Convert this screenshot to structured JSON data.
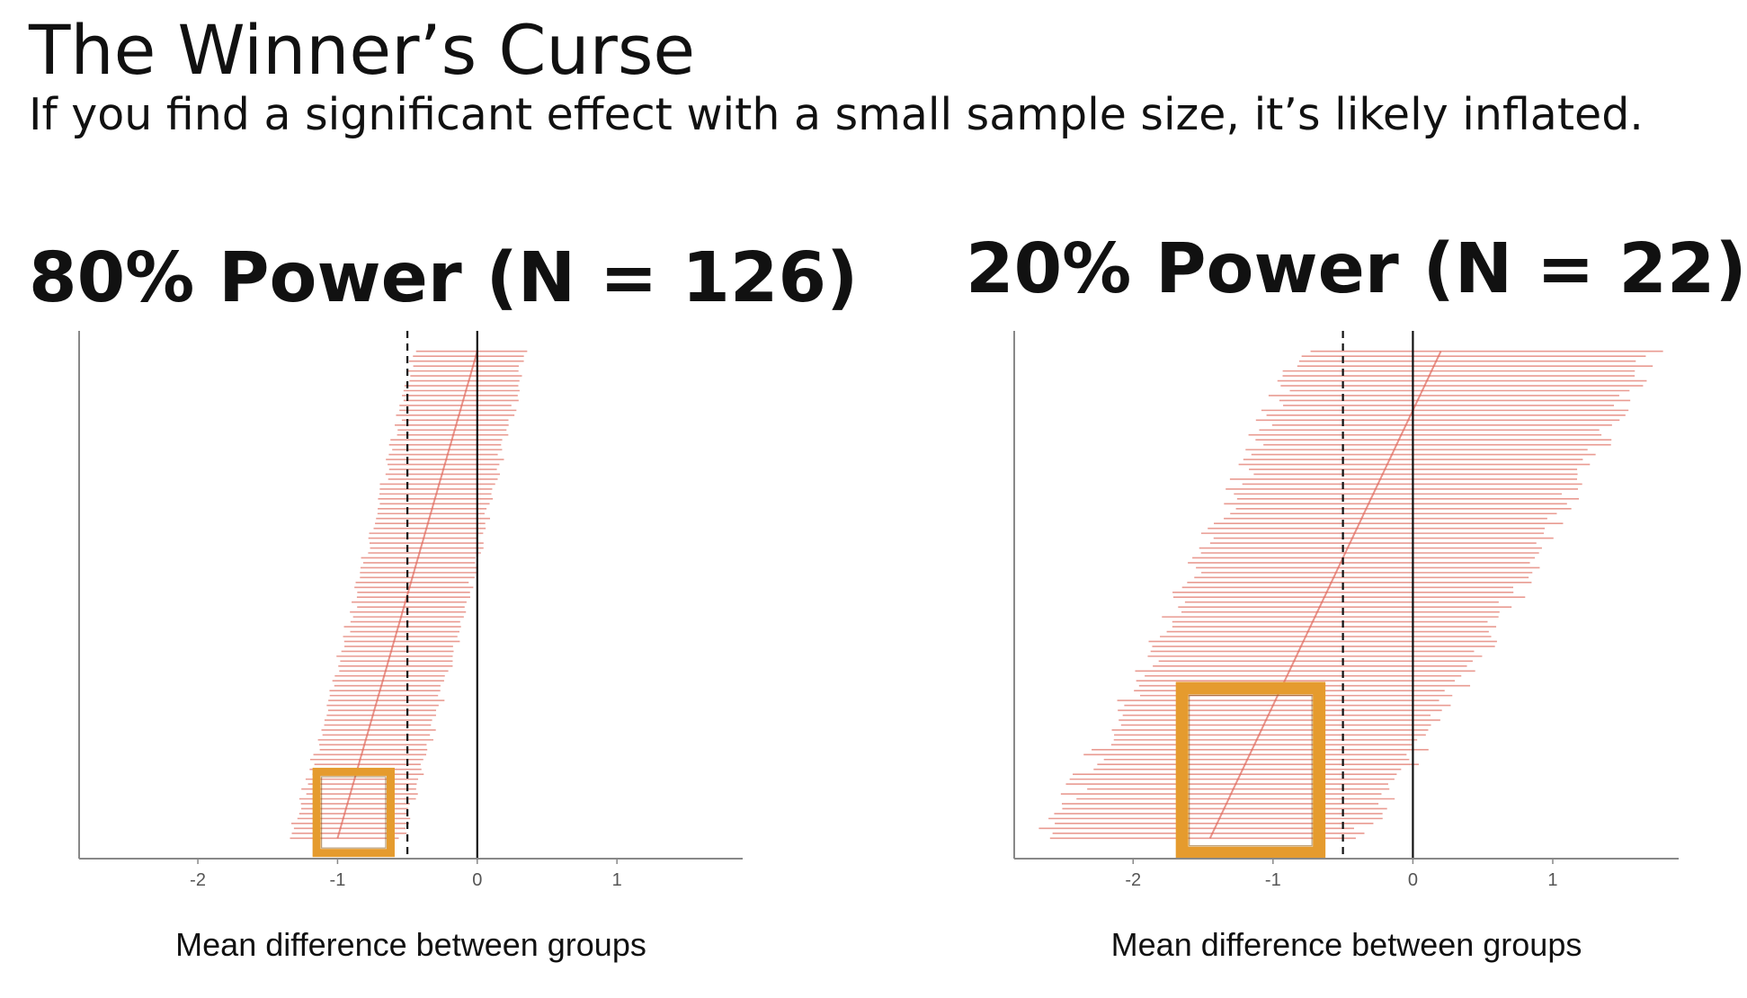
{
  "slide": {
    "title": "The Winner’s Curse",
    "subtitle": "If you find a significant effect with a small sample size, it’s likely inflated."
  },
  "colors": {
    "interval": "#e58a7f",
    "point_trend": "#e0675a",
    "highlight": "#e59b2e",
    "reference_line": "#111111",
    "axis": "#888888"
  },
  "chart_data": [
    {
      "type": "forest",
      "title": "80% Power (N = 126)",
      "xlabel": "Mean difference between groups",
      "ylabel": "",
      "xlim": [
        -2.85,
        1.9
      ],
      "x_ticks": [
        -2,
        -1,
        0,
        1
      ],
      "x_tick_labels": [
        "-2",
        "-1",
        "0",
        "1"
      ],
      "reference_lines": [
        {
          "x": 0,
          "style": "solid"
        },
        {
          "x": -0.5,
          "style": "dashed"
        }
      ],
      "intervals": {
        "count": 100,
        "ordered_by": "estimate",
        "lower_at_bottom": -1.35,
        "lower_at_top": -0.45,
        "upper_at_bottom": -0.55,
        "upper_at_top": 0.35,
        "estimate_at_bottom": -1.0,
        "estimate_at_top": 0.0
      },
      "highlight_box": {
        "x_range": [
          -1.15,
          -0.62
        ],
        "rows_from_bottom": [
          0,
          13
        ]
      }
    },
    {
      "type": "forest",
      "title": "20% Power (N = 22)",
      "xlabel": "Mean difference between groups",
      "ylabel": "",
      "xlim": [
        -2.85,
        1.9
      ],
      "x_ticks": [
        -2,
        -1,
        0,
        1
      ],
      "x_tick_labels": [
        "-2",
        "-1",
        "0",
        "1"
      ],
      "reference_lines": [
        {
          "x": 0,
          "style": "solid"
        },
        {
          "x": -0.5,
          "style": "dashed"
        }
      ],
      "intervals": {
        "count": 100,
        "ordered_by": "estimate",
        "lower_at_bottom": -2.65,
        "lower_at_top": -0.8,
        "upper_at_bottom": -0.4,
        "upper_at_top": 1.7,
        "estimate_at_bottom": -1.45,
        "estimate_at_top": 0.2
      },
      "highlight_box": {
        "x_range": [
          -1.65,
          -0.67
        ],
        "rows_from_bottom": [
          0,
          30
        ]
      }
    }
  ]
}
